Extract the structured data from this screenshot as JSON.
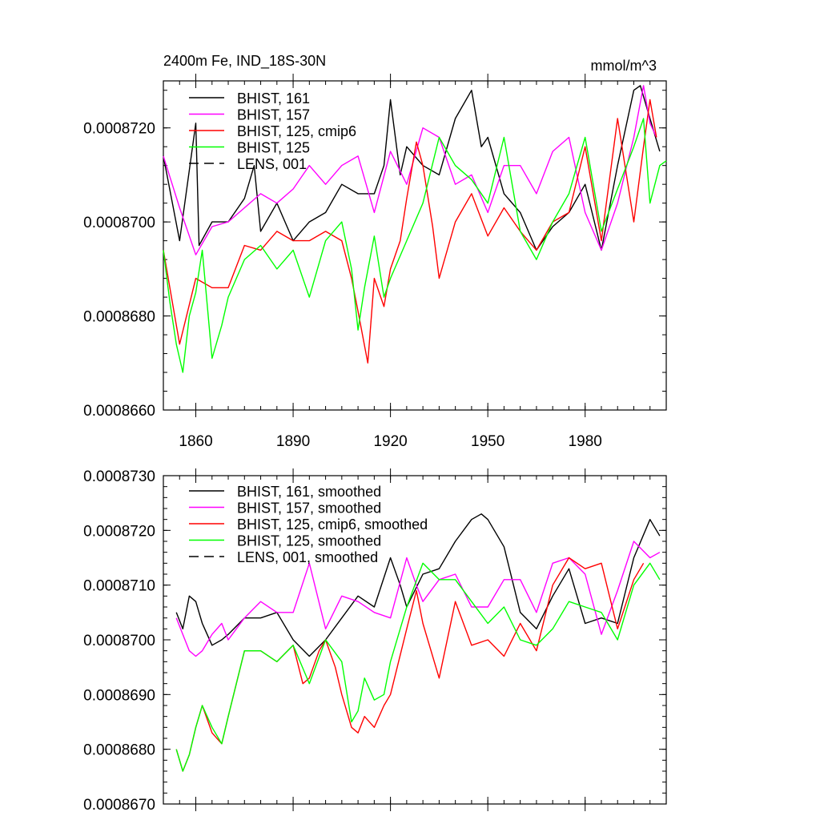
{
  "chart_data": [
    {
      "type": "line",
      "title": "2400m Fe, IND_18S-30N",
      "units": "mmol/m^3",
      "xlim": [
        1850,
        2005
      ],
      "ylim": [
        0.000866,
        0.000873
      ],
      "yticks": [
        0.000866,
        0.000868,
        0.00087,
        0.000872
      ],
      "ytick_labels": [
        "0.0008660",
        "0.0008680",
        "0.0008700",
        "0.0008720"
      ],
      "xticks": [
        1860,
        1890,
        1920,
        1950,
        1980
      ],
      "xtick_labels": [
        "1860",
        "1890",
        "1920",
        "1950",
        "1980"
      ],
      "legend_position": "top-left",
      "legend": [
        {
          "label": "BHIST, 161",
          "color": "#000000",
          "dash": false
        },
        {
          "label": "BHIST, 157",
          "color": "#ff00ff",
          "dash": false
        },
        {
          "label": "BHIST, 125, cmip6",
          "color": "#ff0000",
          "dash": false
        },
        {
          "label": "BHIST, 125",
          "color": "#00ff00",
          "dash": false
        },
        {
          "label": "LENS, 001",
          "color": "#000000",
          "dash": true
        }
      ],
      "series": [
        {
          "name": "BHIST, 161",
          "color": "#000000",
          "x": [
            1850,
            1855,
            1860,
            1861,
            1865,
            1870,
            1875,
            1878,
            1880,
            1885,
            1890,
            1895,
            1900,
            1905,
            1910,
            1915,
            1918,
            1920,
            1923,
            1925,
            1930,
            1935,
            1940,
            1945,
            1948,
            1950,
            1955,
            1960,
            1965,
            1970,
            1975,
            1980,
            1985,
            1990,
            1995,
            1997,
            2000,
            2003
          ],
          "y": [
            0.0008714,
            0.0008696,
            0.0008721,
            0.0008695,
            0.00087,
            0.00087,
            0.0008705,
            0.0008712,
            0.0008698,
            0.0008704,
            0.0008696,
            0.00087,
            0.0008702,
            0.0008708,
            0.0008706,
            0.0008706,
            0.0008712,
            0.0008726,
            0.000871,
            0.0008716,
            0.0008712,
            0.000871,
            0.0008722,
            0.0008728,
            0.0008716,
            0.0008718,
            0.0008706,
            0.0008702,
            0.0008694,
            0.0008699,
            0.0008702,
            0.0008708,
            0.0008694,
            0.0008712,
            0.0008728,
            0.0008729,
            0.0008722,
            0.0008715
          ]
        },
        {
          "name": "BHIST, 157",
          "color": "#ff00ff",
          "x": [
            1850,
            1855,
            1860,
            1865,
            1870,
            1875,
            1880,
            1885,
            1890,
            1895,
            1900,
            1905,
            1910,
            1915,
            1920,
            1925,
            1930,
            1935,
            1940,
            1945,
            1950,
            1955,
            1960,
            1965,
            1970,
            1975,
            1980,
            1985,
            1990,
            1995,
            1998,
            2000,
            2002
          ],
          "y": [
            0.0008714,
            0.0008703,
            0.0008693,
            0.0008699,
            0.00087,
            0.0008703,
            0.0008706,
            0.0008704,
            0.0008707,
            0.0008712,
            0.0008708,
            0.0008712,
            0.0008714,
            0.0008702,
            0.0008715,
            0.0008708,
            0.000872,
            0.0008718,
            0.0008708,
            0.000871,
            0.0008702,
            0.0008712,
            0.0008712,
            0.0008706,
            0.0008715,
            0.0008718,
            0.0008702,
            0.0008694,
            0.0008704,
            0.0008718,
            0.0008729,
            0.0008721,
            0.0008718
          ]
        },
        {
          "name": "BHIST, 125, cmip6",
          "color": "#ff0000",
          "x": [
            1850,
            1855,
            1860,
            1865,
            1870,
            1875,
            1880,
            1885,
            1890,
            1895,
            1900,
            1905,
            1908,
            1910,
            1913,
            1915,
            1918,
            1920,
            1923,
            1925,
            1928,
            1930,
            1933,
            1935,
            1940,
            1945,
            1950,
            1955,
            1960,
            1965,
            1970,
            1975,
            1980,
            1985,
            1990,
            1995,
            1998,
            2000,
            2002
          ],
          "y": [
            0.0008694,
            0.0008674,
            0.0008688,
            0.0008686,
            0.0008686,
            0.0008695,
            0.0008694,
            0.0008698,
            0.0008696,
            0.0008696,
            0.0008698,
            0.0008696,
            0.0008688,
            0.0008681,
            0.000867,
            0.0008688,
            0.0008682,
            0.000869,
            0.0008696,
            0.0008705,
            0.0008717,
            0.0008712,
            0.0008699,
            0.0008688,
            0.00087,
            0.0008706,
            0.0008697,
            0.0008703,
            0.0008698,
            0.0008694,
            0.00087,
            0.0008702,
            0.0008716,
            0.0008696,
            0.0008722,
            0.00087,
            0.0008716,
            0.0008726,
            0.0008718
          ]
        },
        {
          "name": "BHIST, 125",
          "color": "#00ff00",
          "x": [
            1850,
            1852,
            1854,
            1856,
            1858,
            1860,
            1862,
            1865,
            1868,
            1870,
            1875,
            1880,
            1885,
            1890,
            1895,
            1900,
            1905,
            1908,
            1910,
            1912,
            1915,
            1918,
            1920,
            1925,
            1930,
            1935,
            1940,
            1945,
            1950,
            1955,
            1960,
            1965,
            1970,
            1975,
            1980,
            1985,
            1990,
            1995,
            1998,
            2000,
            2003,
            2005
          ],
          "y": [
            0.0008694,
            0.0008683,
            0.0008674,
            0.0008668,
            0.000868,
            0.0008685,
            0.0008694,
            0.0008671,
            0.0008678,
            0.0008684,
            0.0008692,
            0.0008695,
            0.000869,
            0.0008694,
            0.0008684,
            0.0008696,
            0.00087,
            0.000869,
            0.0008677,
            0.0008686,
            0.0008697,
            0.0008684,
            0.0008688,
            0.0008696,
            0.0008704,
            0.0008718,
            0.0008712,
            0.0008709,
            0.0008704,
            0.0008718,
            0.0008698,
            0.0008692,
            0.00087,
            0.0008706,
            0.0008718,
            0.0008698,
            0.0008707,
            0.0008716,
            0.0008722,
            0.0008704,
            0.0008712,
            0.0008713
          ]
        }
      ]
    },
    {
      "type": "line",
      "title": "",
      "units": "",
      "xlim": [
        1850,
        2005
      ],
      "ylim": [
        0.000867,
        0.000873
      ],
      "yticks": [
        0.000867,
        0.000868,
        0.000869,
        0.00087,
        0.000871,
        0.000872,
        0.000873
      ],
      "ytick_labels": [
        "0.0008670",
        "0.0008680",
        "0.0008690",
        "0.0008700",
        "0.0008710",
        "0.0008720",
        "0.0008730"
      ],
      "xticks": [
        1860,
        1890,
        1920,
        1950,
        1980
      ],
      "xtick_labels": [],
      "legend_position": "top-left",
      "legend": [
        {
          "label": "BHIST, 161, smoothed",
          "color": "#000000",
          "dash": false
        },
        {
          "label": "BHIST, 157, smoothed",
          "color": "#ff00ff",
          "dash": false
        },
        {
          "label": "BHIST, 125, cmip6, smoothed",
          "color": "#ff0000",
          "dash": false
        },
        {
          "label": "BHIST, 125, smoothed",
          "color": "#00ff00",
          "dash": false
        },
        {
          "label": "LENS, 001, smoothed",
          "color": "#000000",
          "dash": true
        }
      ],
      "series": [
        {
          "name": "BHIST, 161, smoothed",
          "color": "#000000",
          "x": [
            1854,
            1856,
            1858,
            1860,
            1862,
            1865,
            1868,
            1870,
            1875,
            1880,
            1885,
            1890,
            1895,
            1900,
            1905,
            1910,
            1915,
            1920,
            1923,
            1925,
            1930,
            1935,
            1940,
            1945,
            1948,
            1950,
            1955,
            1960,
            1965,
            1970,
            1975,
            1980,
            1985,
            1990,
            1995,
            2000,
            2003
          ],
          "y": [
            0.0008705,
            0.0008702,
            0.0008708,
            0.0008707,
            0.0008703,
            0.0008699,
            0.00087,
            0.0008701,
            0.0008704,
            0.0008704,
            0.0008705,
            0.00087,
            0.0008697,
            0.00087,
            0.0008704,
            0.0008708,
            0.0008706,
            0.0008715,
            0.000871,
            0.0008706,
            0.0008712,
            0.0008713,
            0.0008718,
            0.0008722,
            0.0008723,
            0.0008722,
            0.0008717,
            0.0008705,
            0.0008702,
            0.0008708,
            0.0008713,
            0.0008703,
            0.0008704,
            0.0008703,
            0.0008715,
            0.0008722,
            0.0008719
          ]
        },
        {
          "name": "BHIST, 157, smoothed",
          "color": "#ff00ff",
          "x": [
            1854,
            1856,
            1858,
            1860,
            1862,
            1865,
            1868,
            1870,
            1875,
            1880,
            1885,
            1890,
            1895,
            1900,
            1905,
            1910,
            1915,
            1920,
            1925,
            1928,
            1930,
            1935,
            1940,
            1945,
            1950,
            1955,
            1960,
            1965,
            1970,
            1975,
            1980,
            1985,
            1990,
            1995,
            2000,
            2003
          ],
          "y": [
            0.0008704,
            0.0008701,
            0.0008698,
            0.0008697,
            0.0008698,
            0.0008701,
            0.0008703,
            0.00087,
            0.0008704,
            0.0008707,
            0.0008705,
            0.0008705,
            0.0008714,
            0.0008702,
            0.0008708,
            0.0008707,
            0.0008705,
            0.0008704,
            0.0008715,
            0.000871,
            0.0008707,
            0.0008711,
            0.0008712,
            0.0008706,
            0.0008706,
            0.0008711,
            0.0008711,
            0.0008705,
            0.0008714,
            0.0008715,
            0.0008712,
            0.0008701,
            0.0008709,
            0.0008718,
            0.0008715,
            0.0008716
          ]
        },
        {
          "name": "BHIST, 125, cmip6, smoothed",
          "color": "#ff0000",
          "x": [
            1854,
            1856,
            1858,
            1860,
            1862,
            1865,
            1868,
            1870,
            1875,
            1880,
            1885,
            1890,
            1893,
            1895,
            1898,
            1900,
            1903,
            1905,
            1908,
            1910,
            1912,
            1915,
            1918,
            1920,
            1925,
            1928,
            1930,
            1935,
            1940,
            1945,
            1950,
            1955,
            1960,
            1965,
            1970,
            1975,
            1980,
            1985,
            1990,
            1995,
            1998
          ],
          "y": [
            0.000868,
            0.0008676,
            0.0008679,
            0.0008684,
            0.0008688,
            0.0008683,
            0.0008681,
            0.0008686,
            0.0008698,
            0.0008698,
            0.0008696,
            0.0008699,
            0.0008692,
            0.0008693,
            0.0008698,
            0.00087,
            0.0008695,
            0.000869,
            0.0008684,
            0.0008683,
            0.0008686,
            0.0008684,
            0.0008688,
            0.000869,
            0.0008702,
            0.0008709,
            0.0008703,
            0.0008693,
            0.0008707,
            0.0008699,
            0.00087,
            0.0008697,
            0.0008703,
            0.0008698,
            0.000871,
            0.0008715,
            0.0008713,
            0.0008714,
            0.0008702,
            0.0008711,
            0.0008714
          ]
        },
        {
          "name": "BHIST, 125, smoothed",
          "color": "#00ff00",
          "x": [
            1854,
            1856,
            1858,
            1860,
            1862,
            1865,
            1868,
            1870,
            1875,
            1880,
            1885,
            1890,
            1895,
            1900,
            1905,
            1908,
            1910,
            1912,
            1915,
            1918,
            1920,
            1925,
            1930,
            1935,
            1940,
            1945,
            1950,
            1955,
            1960,
            1965,
            1970,
            1975,
            1980,
            1985,
            1990,
            1995,
            2000,
            2003
          ],
          "y": [
            0.000868,
            0.0008676,
            0.0008679,
            0.0008684,
            0.0008688,
            0.0008684,
            0.0008681,
            0.0008686,
            0.0008698,
            0.0008698,
            0.0008696,
            0.0008699,
            0.0008692,
            0.00087,
            0.0008696,
            0.0008685,
            0.0008687,
            0.0008693,
            0.0008689,
            0.000869,
            0.0008696,
            0.0008706,
            0.0008714,
            0.0008711,
            0.0008711,
            0.0008707,
            0.0008703,
            0.0008706,
            0.00087,
            0.0008699,
            0.0008702,
            0.0008707,
            0.0008706,
            0.0008705,
            0.00087,
            0.000871,
            0.0008714,
            0.0008711
          ]
        }
      ]
    }
  ]
}
